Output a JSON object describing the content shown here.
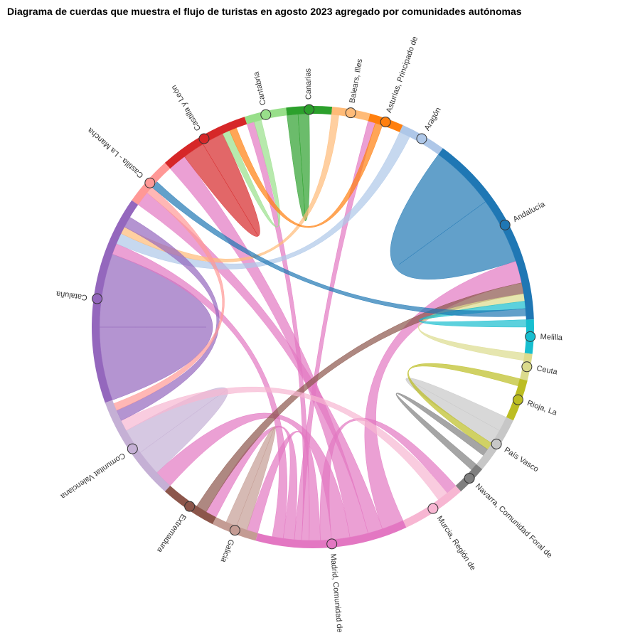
{
  "chart_data": {
    "type": "chord",
    "title": "Diagrama de cuerdas que muestra el flujo de turistas en agosto 2023 agregado por comunidades autónomas",
    "nodes": [
      {
        "name": "Canarias",
        "color": "#2ca02c",
        "value": 12
      },
      {
        "name": "Balears, Illes",
        "color": "#ffbb78",
        "value": 10
      },
      {
        "name": "Asturias, Principado de",
        "color": "#ff7f0e",
        "value": 9
      },
      {
        "name": "Aragón",
        "color": "#aec7e8",
        "value": 12
      },
      {
        "name": "Andalucía",
        "color": "#1f77b4",
        "value": 52
      },
      {
        "name": "Melilla",
        "color": "#17becf",
        "value": 9
      },
      {
        "name": "Ceuta",
        "color": "#dbdb8d",
        "value": 7
      },
      {
        "name": "Rioja, La",
        "color": "#bcbd22",
        "value": 11
      },
      {
        "name": "País Vasco",
        "color": "#c7c7c7",
        "value": 15
      },
      {
        "name": "Navarra, Comunidad Foral de",
        "color": "#7f7f7f",
        "value": 8
      },
      {
        "name": "Murcia, Región de",
        "color": "#f7b6d2",
        "value": 17
      },
      {
        "name": "Madrid, Comunidad de",
        "color": "#e377c2",
        "value": 40
      },
      {
        "name": "Galicia",
        "color": "#c49c94",
        "value": 12
      },
      {
        "name": "Extremadura",
        "color": "#8c564b",
        "value": 15
      },
      {
        "name": "Comunitat Valenciana",
        "color": "#c5b0d5",
        "value": 28
      },
      {
        "name": "Cataluña",
        "color": "#9467bd",
        "value": 55
      },
      {
        "name": "Castilla - La Mancha",
        "color": "#ff9896",
        "value": 13
      },
      {
        "name": "Castilla y León",
        "color": "#d62728",
        "value": 24
      },
      {
        "name": "Cantabria",
        "color": "#98df8a",
        "value": 11
      }
    ],
    "flows": [
      {
        "source": 4,
        "target": 4,
        "value": 18
      },
      {
        "source": 15,
        "target": 15,
        "value": 20
      },
      {
        "source": 11,
        "target": 4,
        "value": 6
      },
      {
        "source": 11,
        "target": 16,
        "value": 4
      },
      {
        "source": 11,
        "target": 17,
        "value": 5
      },
      {
        "source": 11,
        "target": 14,
        "value": 5
      },
      {
        "source": 11,
        "target": 10,
        "value": 3
      },
      {
        "source": 11,
        "target": 12,
        "value": 3
      },
      {
        "source": 11,
        "target": 18,
        "value": 2
      },
      {
        "source": 11,
        "target": 2,
        "value": 2
      },
      {
        "source": 11,
        "target": 13,
        "value": 3
      },
      {
        "source": 11,
        "target": 15,
        "value": 3
      },
      {
        "source": 17,
        "target": 17,
        "value": 6
      },
      {
        "source": 14,
        "target": 14,
        "value": 7
      },
      {
        "source": 8,
        "target": 8,
        "value": 4
      },
      {
        "source": 12,
        "target": 12,
        "value": 3
      },
      {
        "source": 13,
        "target": 4,
        "value": 3
      },
      {
        "source": 0,
        "target": 0,
        "value": 3
      },
      {
        "source": 3,
        "target": 15,
        "value": 3
      },
      {
        "source": 10,
        "target": 14,
        "value": 3
      },
      {
        "source": 7,
        "target": 8,
        "value": 2
      },
      {
        "source": 9,
        "target": 8,
        "value": 2
      },
      {
        "source": 6,
        "target": 4,
        "value": 2
      },
      {
        "source": 5,
        "target": 4,
        "value": 2
      },
      {
        "source": 1,
        "target": 15,
        "value": 2
      },
      {
        "source": 15,
        "target": 14,
        "value": 3
      },
      {
        "source": 16,
        "target": 14,
        "value": 2
      },
      {
        "source": 18,
        "target": 17,
        "value": 2
      },
      {
        "source": 2,
        "target": 17,
        "value": 2
      },
      {
        "source": 4,
        "target": 16,
        "value": 2
      }
    ]
  }
}
